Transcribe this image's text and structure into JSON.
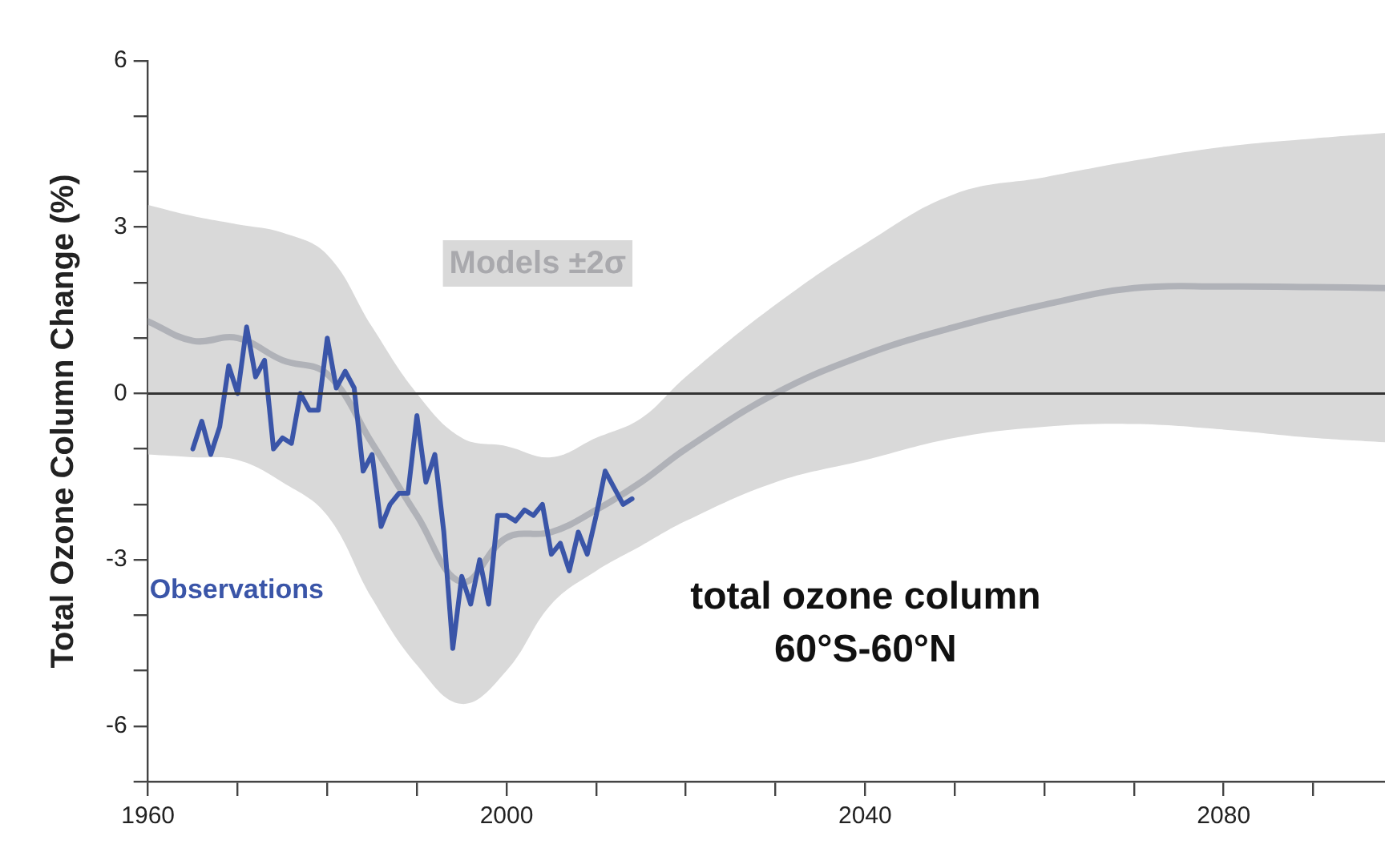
{
  "chart_data": {
    "type": "line",
    "ylabel": "Total Ozone Column Change (%)",
    "annotations": [
      "total ozone column",
      "60°S-60°N"
    ],
    "xlim": [
      1960,
      2098
    ],
    "xticks": [
      1960,
      {
        "value": 1970,
        "label": null
      },
      {
        "value": 1980,
        "label": null
      },
      {
        "value": 1990,
        "label": null
      },
      2000,
      {
        "value": 2010,
        "label": null
      },
      {
        "value": 2020,
        "label": null
      },
      {
        "value": 2030,
        "label": null
      },
      2040,
      {
        "value": 2050,
        "label": null
      },
      {
        "value": 2060,
        "label": null
      },
      {
        "value": 2070,
        "label": null
      },
      2080,
      {
        "value": 2090,
        "label": null
      }
    ],
    "ylim": [
      -7,
      6
    ],
    "yticks": [
      {
        "value": -7,
        "label": null
      },
      -6,
      {
        "value": -5,
        "label": null
      },
      {
        "value": -4,
        "label": null
      },
      -3,
      {
        "value": -2,
        "label": null
      },
      {
        "value": -1,
        "label": null
      },
      0,
      {
        "value": 1,
        "label": null
      },
      {
        "value": 2,
        "label": null
      },
      3,
      {
        "value": 4,
        "label": null
      },
      {
        "value": 5,
        "label": null
      },
      6
    ],
    "grid": false,
    "legend": false,
    "marker": "none",
    "line_style": "solid",
    "ref_lines": [
      {
        "axis": "y",
        "value": 0,
        "color": "#333333"
      }
    ],
    "series": [
      {
        "name": "Models ±2σ",
        "color": "#b0b2b8",
        "x": [
          1960,
          1965,
          1970,
          1975,
          1980,
          1985,
          1990,
          1995,
          2000,
          2005,
          2010,
          2015,
          2020,
          2030,
          2040,
          2050,
          2060,
          2070,
          2080,
          2090,
          2098
        ],
        "values": [
          1.3,
          0.95,
          1.0,
          0.6,
          0.35,
          -0.9,
          -2.2,
          -3.4,
          -2.6,
          -2.5,
          -2.1,
          -1.6,
          -1.0,
          0.0,
          0.7,
          1.2,
          1.6,
          1.9,
          1.93,
          1.92,
          1.9
        ],
        "lower": [
          -1.1,
          -1.15,
          -1.2,
          -1.6,
          -2.2,
          -3.7,
          -4.9,
          -5.6,
          -5.0,
          -3.8,
          -3.2,
          -2.75,
          -2.3,
          -1.6,
          -1.2,
          -0.8,
          -0.6,
          -0.55,
          -0.65,
          -0.8,
          -0.88
        ],
        "upper": [
          3.4,
          3.2,
          3.05,
          2.9,
          2.5,
          1.2,
          0.0,
          -0.8,
          -0.95,
          -1.15,
          -0.8,
          -0.45,
          0.3,
          1.6,
          2.7,
          3.6,
          3.9,
          4.2,
          4.45,
          4.6,
          4.7
        ]
      },
      {
        "name": "Observations",
        "color": "#3a55a8",
        "x": [
          1965,
          1966,
          1967,
          1968,
          1969,
          1970,
          1971,
          1972,
          1973,
          1974,
          1975,
          1976,
          1977,
          1978,
          1979,
          1980,
          1981,
          1982,
          1983,
          1984,
          1985,
          1986,
          1987,
          1988,
          1989,
          1990,
          1991,
          1992,
          1993,
          1994,
          1995,
          1996,
          1997,
          1998,
          1999,
          2000,
          2001,
          2002,
          2003,
          2004,
          2005,
          2006,
          2007,
          2008,
          2009,
          2010,
          2011,
          2012,
          2013,
          2014
        ],
        "values": [
          -1.0,
          -0.5,
          -1.1,
          -0.6,
          0.5,
          0.0,
          1.2,
          0.3,
          0.6,
          -1.0,
          -0.8,
          -0.9,
          0.0,
          -0.3,
          -0.3,
          1.0,
          0.1,
          0.4,
          0.1,
          -1.4,
          -1.1,
          -2.4,
          -2.0,
          -1.8,
          -1.8,
          -0.4,
          -1.6,
          -1.1,
          -2.5,
          -4.6,
          -3.3,
          -3.8,
          -3.0,
          -3.8,
          -2.2,
          -2.2,
          -2.3,
          -2.1,
          -2.2,
          -2.0,
          -2.9,
          -2.7,
          -3.2,
          -2.5,
          -2.9,
          -2.2,
          -1.4,
          -1.7,
          -2.0,
          -1.9
        ]
      }
    ]
  }
}
